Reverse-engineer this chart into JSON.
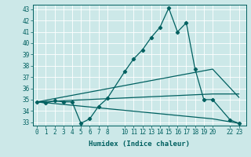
{
  "xlabel": "Humidex (Indice chaleur)",
  "background_color": "#cce8e8",
  "line_color": "#006060",
  "xlim": [
    -0.5,
    23.8
  ],
  "ylim": [
    32.7,
    43.4
  ],
  "xticks": [
    0,
    1,
    2,
    3,
    4,
    5,
    6,
    7,
    8,
    10,
    11,
    12,
    13,
    14,
    15,
    16,
    17,
    18,
    19,
    20,
    22,
    23
  ],
  "xtick_labels": [
    "0",
    "1",
    "2",
    "3",
    "4",
    "5",
    "6",
    "7",
    "8",
    "10",
    "11",
    "12",
    "13",
    "14",
    "15",
    "16",
    "17",
    "18",
    "19",
    "20",
    "22",
    "23"
  ],
  "yticks": [
    33,
    34,
    35,
    36,
    37,
    38,
    39,
    40,
    41,
    42,
    43
  ],
  "series": [
    {
      "x": [
        0,
        1,
        2,
        3,
        4,
        5,
        6,
        7,
        8,
        10,
        11,
        12,
        13,
        14,
        15,
        16,
        17,
        18,
        19,
        20,
        22,
        23
      ],
      "y": [
        34.8,
        34.7,
        34.9,
        34.8,
        34.8,
        32.9,
        33.3,
        34.4,
        35.1,
        37.5,
        38.6,
        39.4,
        40.5,
        41.4,
        43.1,
        41.0,
        41.8,
        37.7,
        35.0,
        35.0,
        33.2,
        32.9
      ],
      "marker": true
    },
    {
      "x": [
        0,
        20,
        23
      ],
      "y": [
        34.8,
        37.7,
        35.2
      ],
      "marker": false
    },
    {
      "x": [
        0,
        20,
        23
      ],
      "y": [
        34.8,
        35.5,
        35.5
      ],
      "marker": false
    },
    {
      "x": [
        0,
        20,
        23
      ],
      "y": [
        34.8,
        33.3,
        32.9
      ],
      "marker": false
    }
  ]
}
